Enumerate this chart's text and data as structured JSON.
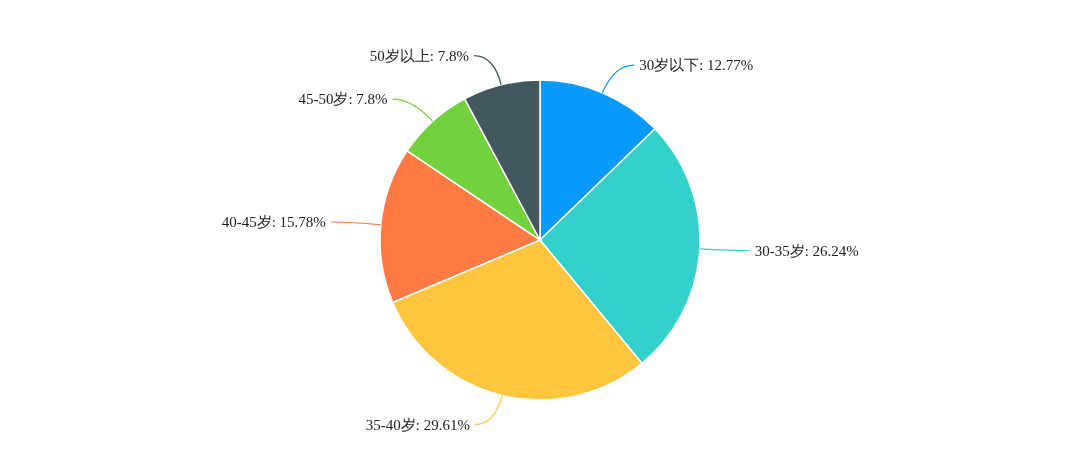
{
  "chart_data": {
    "type": "pie",
    "categories": [
      "30岁以下",
      "30-35岁",
      "35-40岁",
      "40-45岁",
      "45-50岁",
      "50岁以上"
    ],
    "values": [
      12.77,
      26.24,
      29.61,
      15.78,
      7.8,
      7.8
    ],
    "colors": [
      "#0a9afe",
      "#33d1cc",
      "#ffc53d",
      "#ff7a45",
      "#73d13d",
      "#435761"
    ],
    "value_labels": [
      "12.77%",
      "26.24%",
      "29.61%",
      "15.78%",
      "7.8%",
      "7.8%"
    ],
    "legend": false
  }
}
